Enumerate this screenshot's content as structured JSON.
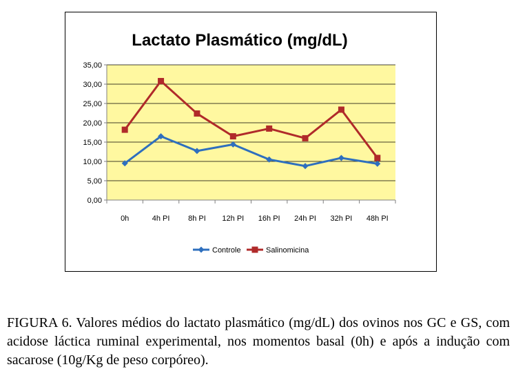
{
  "chart_data": {
    "type": "line",
    "title": "Lactato Plasmático (mg/dL)",
    "categories": [
      "0h",
      "4h PI",
      "8h PI",
      "12h PI",
      "16h PI",
      "24h PI",
      "32h PI",
      "48h PI"
    ],
    "series": [
      {
        "name": "Controle",
        "color": "#2e6fbe",
        "marker": "diamond",
        "values": [
          9.5,
          16.5,
          12.7,
          14.4,
          10.5,
          8.8,
          10.9,
          9.4
        ]
      },
      {
        "name": "Salinomicina",
        "color": "#b02a2a",
        "marker": "square",
        "values": [
          18.2,
          30.8,
          22.4,
          16.5,
          18.5,
          16.0,
          23.4,
          10.9
        ]
      }
    ],
    "ylim": [
      0,
      35
    ],
    "yticks": [
      0,
      5,
      10,
      15,
      20,
      25,
      30,
      35
    ],
    "ytick_labels": [
      "0,00",
      "5,00",
      "10,00",
      "15,00",
      "20,00",
      "25,00",
      "30,00",
      "35,00"
    ],
    "xlabel": "",
    "ylabel": "",
    "grid": true,
    "plot_background": "#fff8a0",
    "gridline_color": "#000000",
    "legend_position": "bottom"
  },
  "caption": "FIGURA 6. Valores médios do lactato plasmático (mg/dL) dos ovinos nos GC e GS, com acidose láctica ruminal experimental, nos momentos basal (0h) e após a indução com sacarose (10g/Kg de peso corpóreo)."
}
